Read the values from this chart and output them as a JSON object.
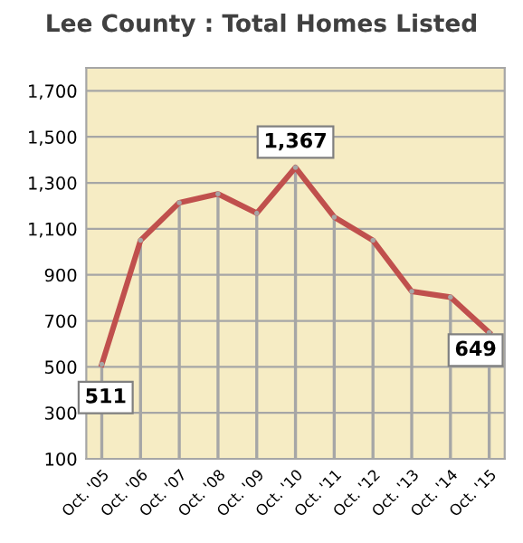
{
  "chart_data": {
    "type": "line",
    "title": "Lee County : Total Homes Listed",
    "categories": [
      "Oct. '05",
      "Oct. '06",
      "Oct. '07",
      "Oct. '08",
      "Oct. '09",
      "Oct. '10",
      "Oct. '11",
      "Oct. '12",
      "Oct. '13",
      "Oct. '14",
      "Oct. '15"
    ],
    "series": [
      {
        "type": "lollipop",
        "color": "#a6a6a6",
        "values": [
          511,
          1050,
          1214,
          1252,
          1168,
          1367,
          1151,
          1050,
          828,
          803,
          649
        ]
      },
      {
        "color": "#c0504d",
        "values": [
          511,
          1050,
          1214,
          1252,
          1168,
          1367,
          1151,
          1050,
          828,
          803,
          649
        ],
        "value_labels": [
          "511",
          null,
          null,
          null,
          null,
          "1,367",
          null,
          null,
          null,
          null,
          "649"
        ]
      }
    ],
    "ylim": [
      100,
      1800
    ],
    "yticks": [
      100,
      300,
      500,
      700,
      900,
      {
        "value": 1100,
        "label": "1,100"
      },
      {
        "value": 1300,
        "label": "1,300"
      },
      {
        "value": 1500,
        "label": "1,500"
      },
      {
        "value": 1700,
        "label": "1,700"
      }
    ],
    "grid": "y",
    "marker": "none",
    "line_style": "solid",
    "legend": false
  }
}
